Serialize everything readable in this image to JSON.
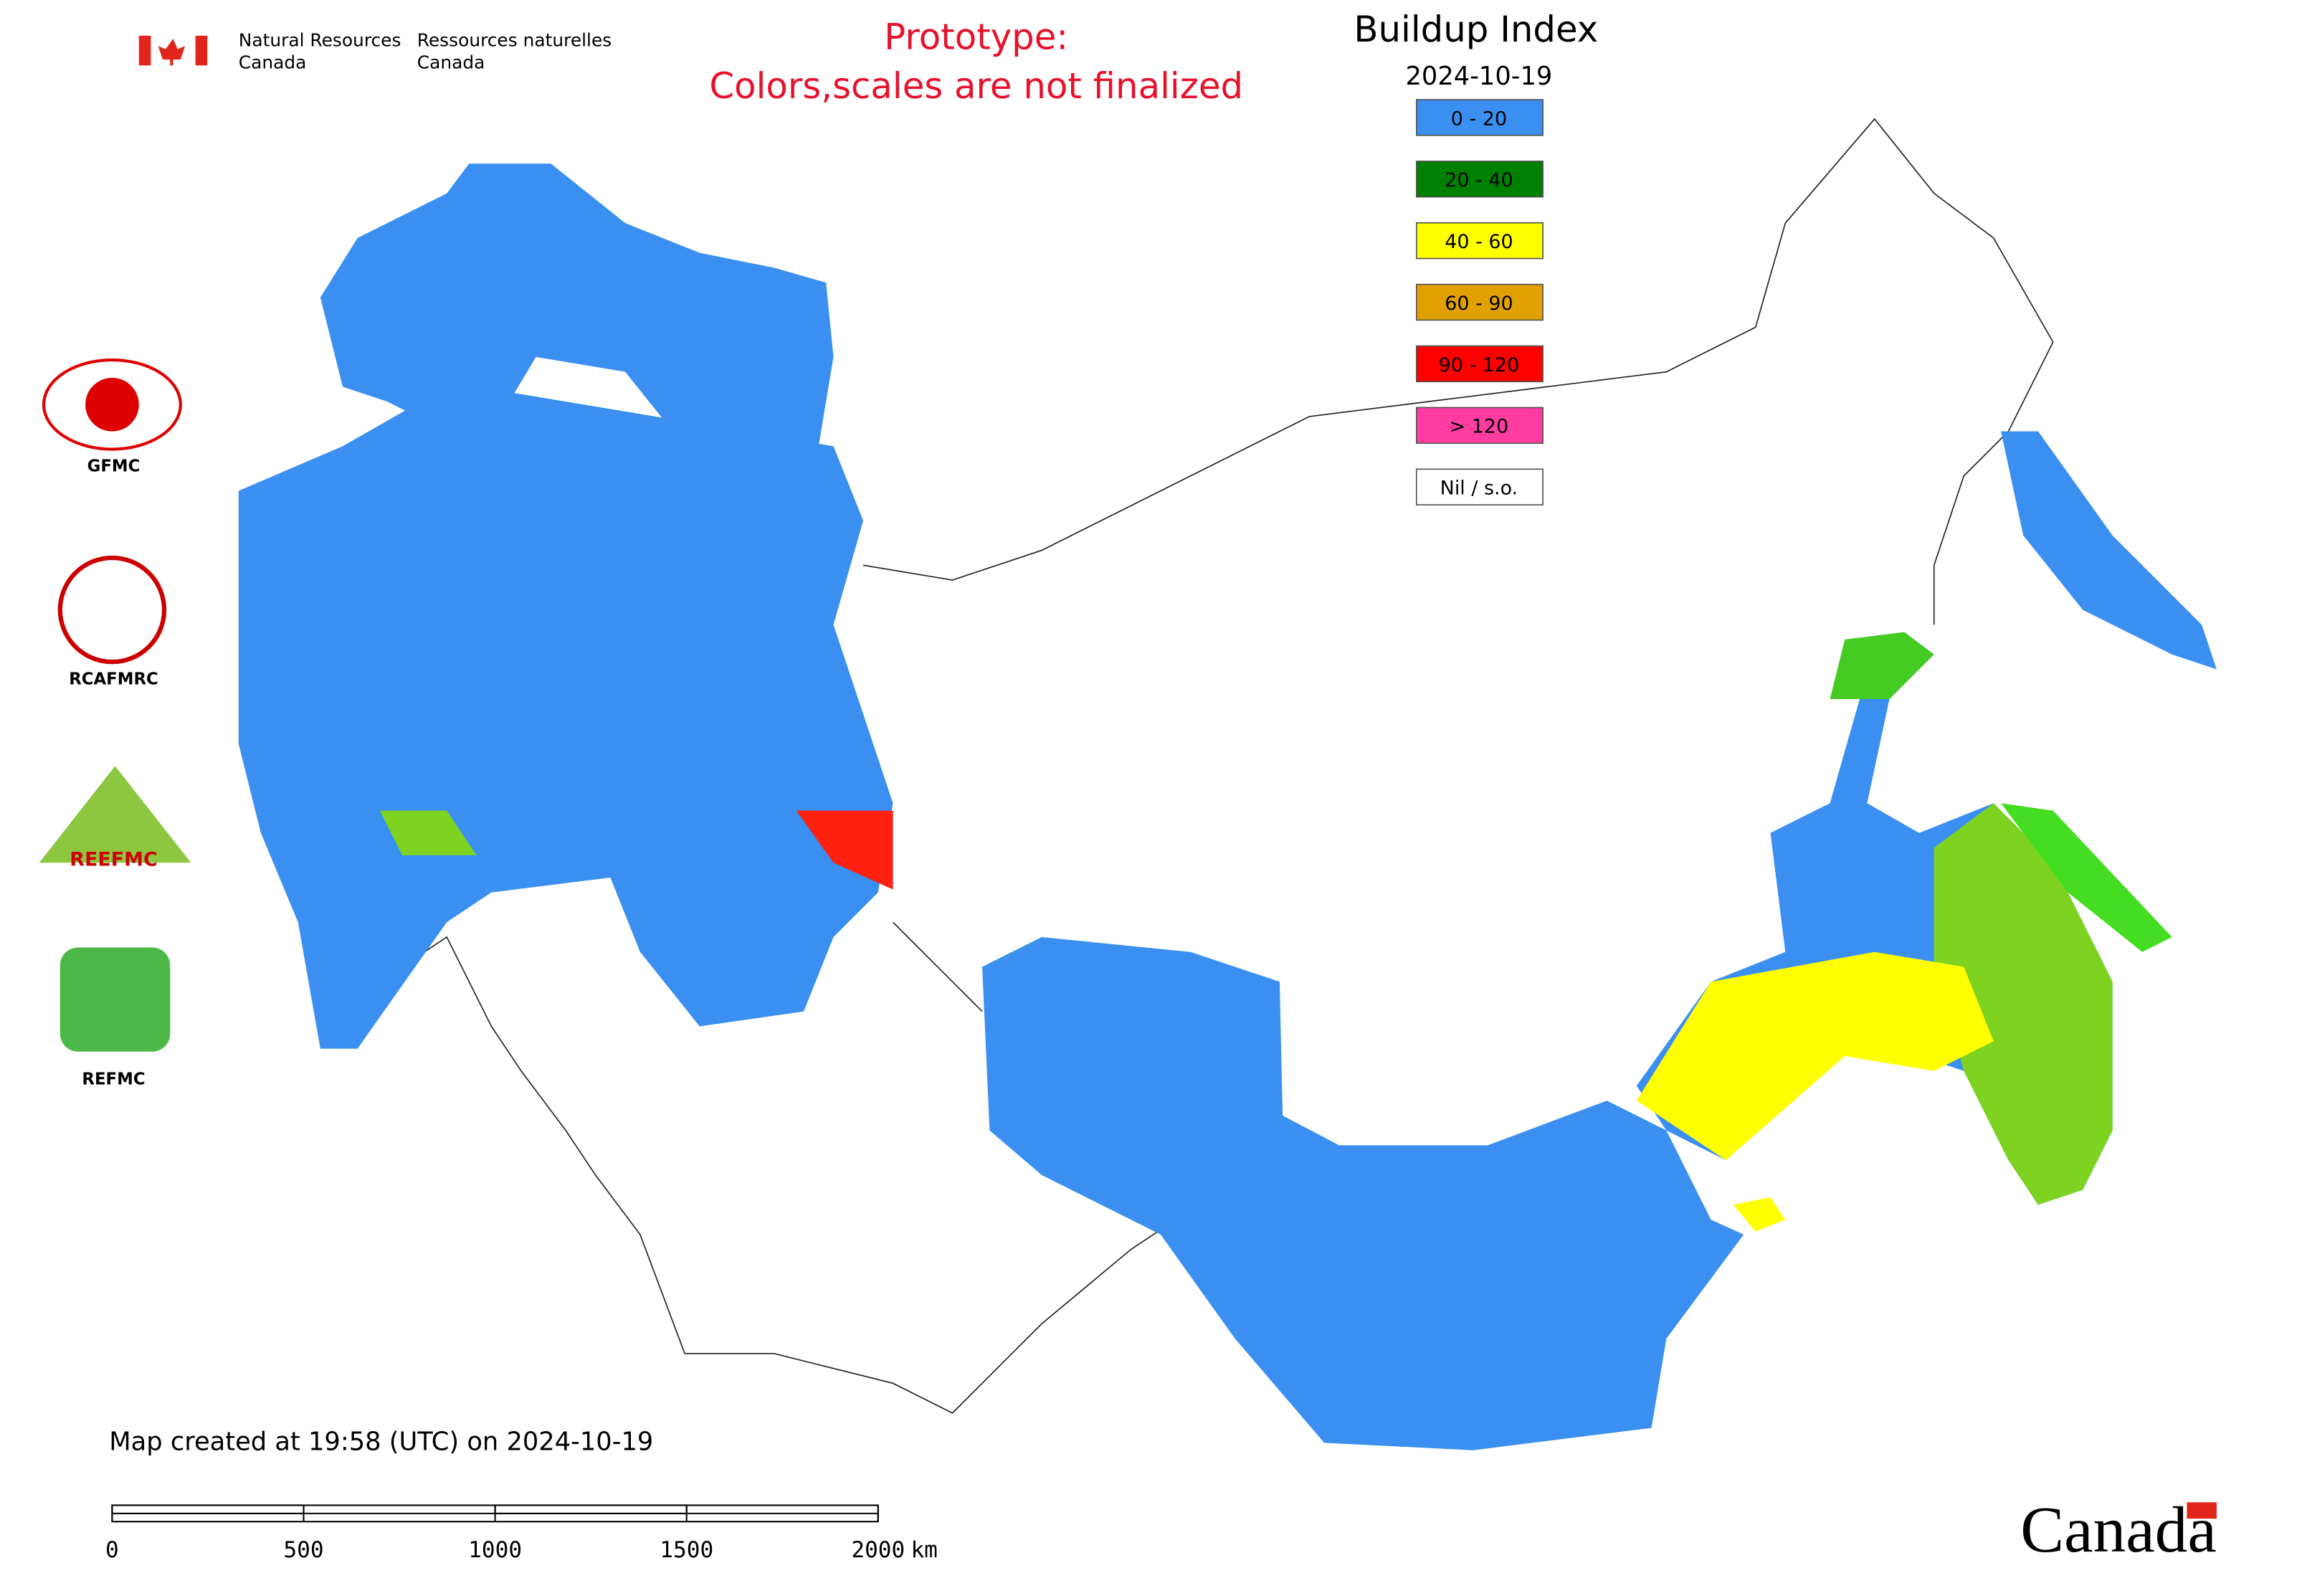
{
  "header": {
    "department_en": [
      "Natural Resources",
      "Canada"
    ],
    "department_fr": [
      "Ressources naturelles",
      "Canada"
    ]
  },
  "notice": [
    "Prototype:",
    "Colors,scales are not finalized"
  ],
  "legend": {
    "title": "Buildup Index",
    "date": "2024-10-19",
    "items": [
      {
        "label": "0 - 20",
        "color": "#3a8ff0"
      },
      {
        "label": "20 - 40",
        "color": "#008000"
      },
      {
        "label": "40 - 60",
        "color": "#ffff00"
      },
      {
        "label": "60 - 90",
        "color": "#e0a000"
      },
      {
        "label": "90 - 120",
        "color": "#ff0000"
      },
      {
        "label": "> 120",
        "color": "#ff3ca0"
      },
      {
        "label": "Nil / s.o.",
        "color": "#ffffff"
      }
    ]
  },
  "logos": [
    "GFMC",
    "RCAFMRC",
    "REEFMC",
    "REFMC"
  ],
  "footer": {
    "created": "Map created at 19:58 (UTC) on 2024-10-19",
    "wordmark": "Canada"
  },
  "scale": {
    "ticks": [
      0,
      500,
      1000,
      1500,
      2000
    ],
    "unit": "km"
  }
}
